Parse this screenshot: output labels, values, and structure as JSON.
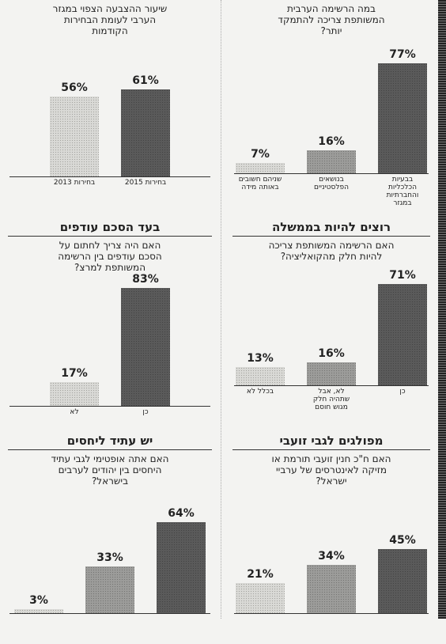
{
  "chart_data": [
    {
      "type": "bar",
      "subtitle": "שיעור ההצבעה הצפוי במגזר הערבי לעומת הבחירות הקודמות",
      "categories": [
        "בחירות 2013",
        "בחירות 2015"
      ],
      "values": [
        56,
        61
      ],
      "value_labels": [
        "56%",
        "61%"
      ],
      "colors": [
        "#d9d9d6",
        "#5a5a5a"
      ]
    },
    {
      "type": "bar",
      "subtitle": "במה הרשימה הערבית המשותפת צריכה להתמקד יותר?",
      "categories": [
        "שניהם חשובים באותה מידה",
        "בנושאים הפלסטיניים",
        "בבעיות הכלכליות והחברתיות במגזר"
      ],
      "values": [
        7,
        16,
        77
      ],
      "value_labels": [
        "7%",
        "16%",
        "77%"
      ],
      "colors": [
        "#d9d9d6",
        "#9c9c9a",
        "#5a5a5a"
      ]
    },
    {
      "type": "bar",
      "title": "בעד הסכם עודפים",
      "subtitle": "האם היה צריך לחתום על הסכם עודפים בין הרשימה המשותפת למרצ?",
      "categories": [
        "לא",
        "כן"
      ],
      "values": [
        17,
        83
      ],
      "value_labels": [
        "17%",
        "83%"
      ],
      "colors": [
        "#d9d9d6",
        "#5a5a5a"
      ]
    },
    {
      "type": "bar",
      "title": "רוצים להיות בממשלה",
      "subtitle": "האם הרשימה המשותפת צריכה להיות חלק מהקואליציה?",
      "categories": [
        "בכלל לא",
        "לא, אבל שתהיה חלק מגוש חוסם",
        "כן"
      ],
      "values": [
        13,
        16,
        71
      ],
      "value_labels": [
        "13%",
        "16%",
        "71%"
      ],
      "colors": [
        "#d9d9d6",
        "#9c9c9a",
        "#5a5a5a"
      ]
    },
    {
      "type": "bar",
      "title": "יש עתיד ליחסים",
      "subtitle": "האם אתה אופטימי לגבי עתיד היחסים בין יהודים לערבים בישראל?",
      "categories": [
        null,
        null,
        null
      ],
      "values": [
        3,
        33,
        64
      ],
      "value_labels": [
        "3%",
        "33%",
        "64%"
      ],
      "colors": [
        "#d9d9d6",
        "#9c9c9a",
        "#5a5a5a"
      ]
    },
    {
      "type": "bar",
      "title": "מפולגים לגבי זועבי",
      "subtitle": "האם ח\"כ חנין זועבי תורמת או מזיקה לאינטרסים של ערביי ישראל?",
      "categories": [
        null,
        null,
        null
      ],
      "values": [
        21,
        34,
        45
      ],
      "value_labels": [
        "21%",
        "34%",
        "45%"
      ],
      "colors": [
        "#d9d9d6",
        "#9c9c9a",
        "#5a5a5a"
      ]
    }
  ]
}
